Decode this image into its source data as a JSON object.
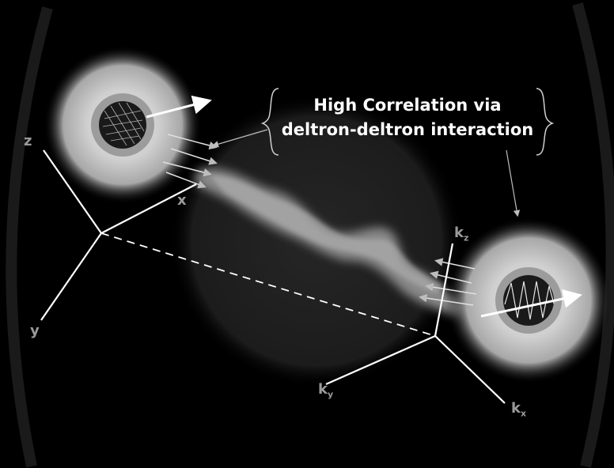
{
  "annotation": {
    "line1": "High Correlation via",
    "line2": "deltron-deltron interaction"
  },
  "left_axes": {
    "z": "z",
    "x": "x",
    "y": "y"
  },
  "right_axes": {
    "kz": {
      "base": "k",
      "sub": "z"
    },
    "ky": {
      "base": "k",
      "sub": "y"
    },
    "kx": {
      "base": "k",
      "sub": "x"
    }
  },
  "colors": {
    "background": "#000000",
    "disc": "#1f1f1f",
    "halo": "#bdbdbd",
    "cloud": "#a8a8a8",
    "arrows": "#ffffff",
    "labels": "#9a9a9a"
  }
}
